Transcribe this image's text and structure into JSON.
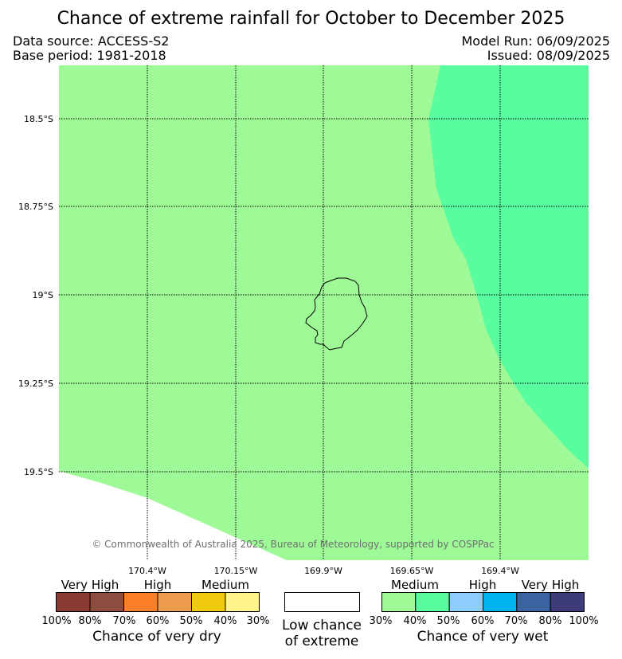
{
  "title": "Chance of extreme rainfall for October to December 2025",
  "data_source": "Data source: ACCESS-S2",
  "base_period": "Base period: 1981-2018",
  "model_run": "Model Run: 06/09/2025",
  "issued": "Issued: 08/09/2025",
  "copyright": "© Commonwealth of Australia 2025, Bureau of Meteorology, supported by COSPPac",
  "latitude_labels": [
    "18.5°S",
    "18.75°S",
    "19°S",
    "19.25°S",
    "19.5°S"
  ],
  "longitude_labels": [
    "170.4°W",
    "170.15°W",
    "169.9°W",
    "169.65°W",
    "169.4°W"
  ],
  "colors": {
    "wet_medium_30_40": "#9dfa96",
    "wet_medium_40_50": "#5afca0",
    "gridline": "#000000",
    "island_outline": "#000000"
  },
  "legend": {
    "dry": {
      "categories": [
        "Very High",
        "High",
        "Medium"
      ],
      "ticks": [
        "100%",
        "80%",
        "70%",
        "60%",
        "50%",
        "40%",
        "30%"
      ],
      "colors": [
        "#8b3a32",
        "#8d4d3e",
        "#fc7f2a",
        "#ed9b4c",
        "#f0c80c",
        "#fff38c"
      ],
      "caption": "Chance of very dry"
    },
    "neutral": {
      "caption_line1": "Low chance",
      "caption_line2": "of extreme",
      "color": "#ffffff"
    },
    "wet": {
      "categories": [
        "Medium",
        "High",
        "Very High"
      ],
      "ticks": [
        "30%",
        "40%",
        "50%",
        "60%",
        "70%",
        "80%",
        "100%"
      ],
      "colors": [
        "#9dfa96",
        "#5afca0",
        "#8ccdfc",
        "#00b4ef",
        "#3a63a0",
        "#3e3b7a"
      ],
      "caption": "Chance of very wet"
    }
  }
}
